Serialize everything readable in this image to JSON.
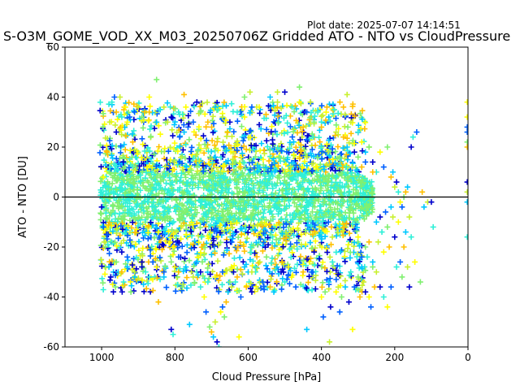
{
  "header": {
    "plot_date": "Plot date: 2025-07-07 14:14:51",
    "title": "S-O3M_GOME_VOD_XX_M03_20250706Z Gridded ATO - NTO vs CloudPressure"
  },
  "chart_data": {
    "type": "scatter",
    "title": "S-O3M_GOME_VOD_XX_M03_20250706Z Gridded ATO - NTO vs CloudPressure",
    "xlabel": "Cloud Pressure [hPa]",
    "ylabel": "ATO - NTO [DU]",
    "xlim": [
      1100,
      0
    ],
    "ylim": [
      -60,
      60
    ],
    "x_reversed": true,
    "x_ticks": [
      1000,
      800,
      600,
      400,
      200,
      0
    ],
    "y_ticks": [
      -60,
      -40,
      -20,
      0,
      20,
      40,
      60
    ],
    "grid": false,
    "reference_line_y": 0,
    "marker": "+",
    "colors": [
      "#0000cc",
      "#0060ff",
      "#00c8ff",
      "#30f0d8",
      "#80f070",
      "#c8f030",
      "#ffff00",
      "#ffc000"
    ],
    "dense_band": {
      "x_range": [
        1005,
        260
      ],
      "y_range": [
        -22,
        22
      ]
    },
    "points": [
      [
        1000,
        -4
      ],
      [
        1000,
        2
      ],
      [
        995,
        8
      ],
      [
        995,
        -12
      ],
      [
        990,
        -20
      ],
      [
        985,
        18
      ],
      [
        980,
        -28
      ],
      [
        978,
        30
      ],
      [
        975,
        -32
      ],
      [
        972,
        38
      ],
      [
        970,
        -35
      ],
      [
        965,
        40
      ],
      [
        962,
        -36
      ],
      [
        960,
        34
      ],
      [
        955,
        -30
      ],
      [
        950,
        40
      ],
      [
        945,
        -22
      ],
      [
        940,
        -34
      ],
      [
        935,
        36
      ],
      [
        930,
        -24
      ],
      [
        920,
        -38
      ],
      [
        915,
        22
      ],
      [
        910,
        -32
      ],
      [
        900,
        36
      ],
      [
        890,
        -28
      ],
      [
        880,
        -30
      ],
      [
        870,
        40
      ],
      [
        860,
        -26
      ],
      [
        850,
        47
      ],
      [
        845,
        -42
      ],
      [
        830,
        -32
      ],
      [
        820,
        30
      ],
      [
        810,
        -53
      ],
      [
        805,
        -55
      ],
      [
        800,
        -28
      ],
      [
        790,
        -24
      ],
      [
        780,
        -36
      ],
      [
        775,
        41
      ],
      [
        760,
        -51
      ],
      [
        755,
        -30
      ],
      [
        740,
        38
      ],
      [
        730,
        -36
      ],
      [
        720,
        -40
      ],
      [
        715,
        -46
      ],
      [
        705,
        -52
      ],
      [
        700,
        -54
      ],
      [
        695,
        -56
      ],
      [
        690,
        -50
      ],
      [
        685,
        -58
      ],
      [
        680,
        -60
      ],
      [
        675,
        -46
      ],
      [
        670,
        -44
      ],
      [
        665,
        -48
      ],
      [
        660,
        -42
      ],
      [
        655,
        -38
      ],
      [
        645,
        -36
      ],
      [
        640,
        -30
      ],
      [
        635,
        -34
      ],
      [
        625,
        -56
      ],
      [
        620,
        -40
      ],
      [
        610,
        40
      ],
      [
        605,
        -36
      ],
      [
        600,
        -30
      ],
      [
        595,
        42
      ],
      [
        590,
        -38
      ],
      [
        580,
        -28
      ],
      [
        570,
        36
      ],
      [
        560,
        -34
      ],
      [
        550,
        -24
      ],
      [
        540,
        -36
      ],
      [
        530,
        -38
      ],
      [
        520,
        42
      ],
      [
        510,
        -30
      ],
      [
        500,
        -34
      ],
      [
        490,
        -28
      ],
      [
        470,
        -36
      ],
      [
        460,
        44
      ],
      [
        450,
        -30
      ],
      [
        440,
        -53
      ],
      [
        430,
        38
      ],
      [
        420,
        -22
      ],
      [
        410,
        34
      ],
      [
        400,
        -40
      ],
      [
        395,
        -48
      ],
      [
        390,
        -38
      ],
      [
        385,
        36
      ],
      [
        380,
        -34
      ],
      [
        378,
        -58
      ],
      [
        375,
        -44
      ],
      [
        370,
        -26
      ],
      [
        360,
        -38
      ],
      [
        350,
        -46
      ],
      [
        345,
        -40
      ],
      [
        340,
        36
      ],
      [
        335,
        -36
      ],
      [
        330,
        41
      ],
      [
        325,
        -42
      ],
      [
        320,
        -30
      ],
      [
        315,
        -53
      ],
      [
        310,
        -36
      ],
      [
        300,
        -32
      ],
      [
        295,
        -40
      ],
      [
        290,
        -28
      ],
      [
        285,
        -34
      ],
      [
        280,
        -38
      ],
      [
        275,
        -24
      ],
      [
        270,
        -40
      ],
      [
        265,
        -44
      ],
      [
        260,
        -28
      ],
      [
        255,
        -36
      ],
      [
        250,
        -10
      ],
      [
        245,
        -18
      ],
      [
        240,
        -8
      ],
      [
        235,
        -14
      ],
      [
        230,
        -22
      ],
      [
        225,
        -6
      ],
      [
        220,
        -12
      ],
      [
        215,
        -20
      ],
      [
        210,
        -4
      ],
      [
        205,
        -8
      ],
      [
        200,
        -16
      ],
      [
        195,
        -28
      ],
      [
        190,
        -10
      ],
      [
        185,
        -26
      ],
      [
        180,
        -32
      ],
      [
        175,
        -20
      ],
      [
        170,
        -14
      ],
      [
        165,
        -28
      ],
      [
        160,
        -36
      ],
      [
        155,
        -16
      ],
      [
        300,
        -16
      ],
      [
        290,
        -24
      ],
      [
        280,
        -20
      ],
      [
        270,
        -18
      ],
      [
        260,
        -26
      ],
      [
        250,
        -30
      ],
      [
        240,
        -36
      ],
      [
        230,
        -40
      ],
      [
        220,
        -44
      ],
      [
        210,
        -36
      ],
      [
        300,
        16
      ],
      [
        290,
        12
      ],
      [
        280,
        18
      ],
      [
        270,
        20
      ],
      [
        260,
        14
      ],
      [
        250,
        10
      ],
      [
        240,
        18
      ],
      [
        230,
        12
      ],
      [
        220,
        20
      ],
      [
        210,
        8
      ],
      [
        205,
        10
      ],
      [
        200,
        4
      ],
      [
        195,
        6
      ],
      [
        190,
        2
      ],
      [
        185,
        -2
      ],
      [
        180,
        -4
      ],
      [
        175,
        0
      ],
      [
        170,
        2
      ],
      [
        165,
        4
      ],
      [
        160,
        -8
      ],
      [
        155,
        20
      ],
      [
        150,
        24
      ],
      [
        145,
        -26
      ],
      [
        140,
        26
      ],
      [
        130,
        -34
      ],
      [
        125,
        2
      ],
      [
        120,
        -4
      ],
      [
        110,
        -2
      ],
      [
        100,
        -2
      ],
      [
        95,
        -12
      ],
      [
        2,
        38
      ],
      [
        2,
        26
      ],
      [
        2,
        22
      ],
      [
        2,
        20
      ],
      [
        2,
        -2
      ],
      [
        2,
        2
      ],
      [
        2,
        6
      ],
      [
        2,
        -16
      ],
      [
        2,
        32
      ],
      [
        2,
        28
      ],
      [
        350,
        16
      ],
      [
        340,
        24
      ],
      [
        330,
        20
      ],
      [
        320,
        30
      ],
      [
        310,
        18
      ],
      [
        300,
        26
      ],
      [
        290,
        22
      ],
      [
        280,
        14
      ],
      [
        270,
        20
      ],
      [
        260,
        10
      ],
      [
        540,
        40
      ],
      [
        520,
        38
      ],
      [
        500,
        42
      ],
      [
        480,
        36
      ],
      [
        460,
        38
      ],
      [
        440,
        34
      ],
      [
        420,
        30
      ],
      [
        400,
        28
      ],
      [
        380,
        32
      ],
      [
        360,
        26
      ],
      [
        960,
        26
      ],
      [
        945,
        32
      ],
      [
        930,
        30
      ],
      [
        910,
        34
      ],
      [
        890,
        32
      ],
      [
        870,
        34
      ],
      [
        850,
        30
      ],
      [
        830,
        36
      ],
      [
        810,
        32
      ],
      [
        790,
        34
      ],
      [
        770,
        36
      ],
      [
        750,
        30
      ],
      [
        730,
        34
      ],
      [
        710,
        30
      ],
      [
        690,
        36
      ],
      [
        670,
        32
      ],
      [
        650,
        30
      ],
      [
        630,
        34
      ],
      [
        610,
        32
      ],
      [
        590,
        36
      ],
      [
        960,
        -26
      ],
      [
        945,
        -30
      ],
      [
        930,
        -28
      ],
      [
        910,
        -30
      ],
      [
        890,
        -26
      ],
      [
        870,
        -32
      ],
      [
        850,
        -28
      ],
      [
        830,
        -30
      ],
      [
        810,
        -26
      ],
      [
        790,
        -30
      ],
      [
        770,
        -28
      ],
      [
        750,
        -32
      ],
      [
        730,
        -30
      ],
      [
        710,
        -34
      ],
      [
        690,
        -32
      ],
      [
        670,
        -30
      ],
      [
        650,
        -34
      ],
      [
        630,
        -32
      ],
      [
        610,
        -28
      ],
      [
        590,
        -30
      ]
    ]
  }
}
